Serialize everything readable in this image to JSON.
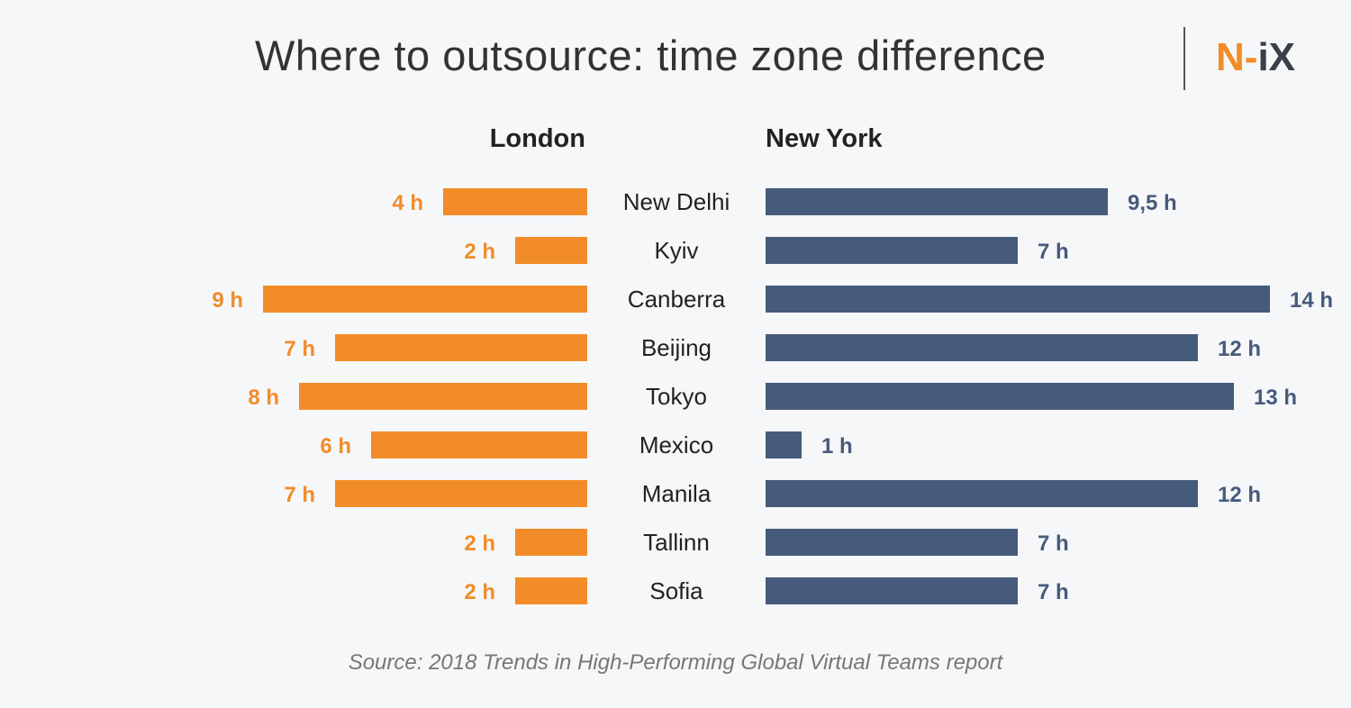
{
  "title": "Where to outsource: time zone difference",
  "logo": {
    "n": "N",
    "dash": "-",
    "ix": "iX"
  },
  "source": "Source: 2018 Trends in High-Performing Global Virtual Teams report",
  "colors": {
    "london": "#f28c28",
    "new_york": "#465a7c",
    "background": "#f6f7f9"
  },
  "chart_data": {
    "type": "bar",
    "title": "Where to outsource: time zone difference",
    "categories": [
      "New Delhi",
      "Kyiv",
      "Canberra",
      "Beijing",
      "Tokyo",
      "Mexico",
      "Manila",
      "Tallinn",
      "Sofia"
    ],
    "series": [
      {
        "name": "London",
        "values": [
          4,
          2,
          9,
          7,
          8,
          6,
          7,
          2,
          2
        ],
        "labels": [
          "4 h",
          "2 h",
          "9 h",
          "7 h",
          "8 h",
          "6 h",
          "7 h",
          "2 h",
          "2 h"
        ]
      },
      {
        "name": "New York",
        "values": [
          9.5,
          7,
          14,
          12,
          13,
          1,
          12,
          7,
          7
        ],
        "labels": [
          "9,5 h",
          "7 h",
          "14 h",
          "12 h",
          "13 h",
          "1 h",
          "12 h",
          "7 h",
          "7 h"
        ]
      }
    ],
    "orientation": "horizontal-diverging",
    "grid": false,
    "unit": "h"
  }
}
